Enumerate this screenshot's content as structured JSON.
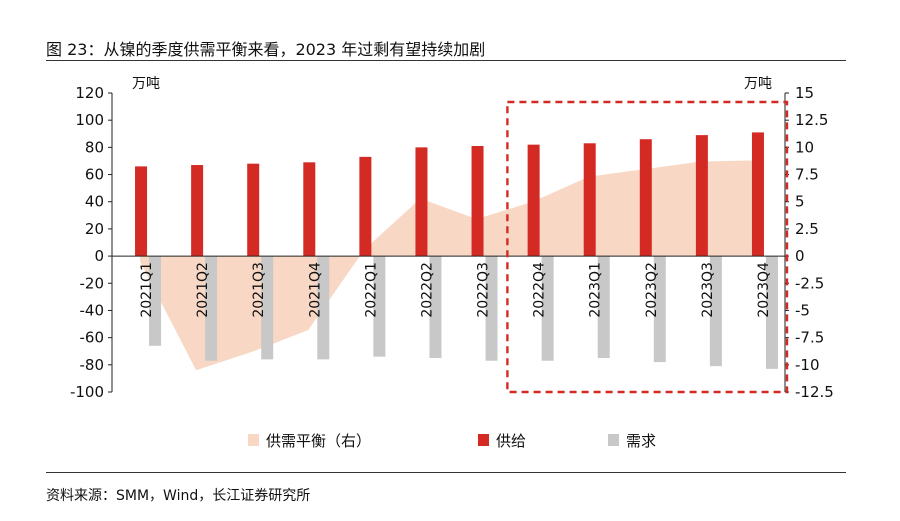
{
  "title": "图 23：从镍的季度供需平衡来看，2023 年过剩有望持续加剧",
  "source": "资料来源：SMM，Wind，长江证券研究所",
  "chart_data": {
    "type": "bar",
    "left_unit": "万吨",
    "right_unit": "万吨",
    "categories": [
      "2021Q1",
      "2021Q2",
      "2021Q3",
      "2021Q4",
      "2022Q1",
      "2022Q2",
      "2022Q3",
      "2022Q4",
      "2023Q1",
      "2023Q2",
      "2023Q3",
      "2023Q4"
    ],
    "ylim_left": [
      -100,
      120
    ],
    "yticks_left": [
      120,
      100,
      80,
      60,
      40,
      20,
      0,
      -20,
      -40,
      -60,
      -80,
      -100
    ],
    "ylim_right": [
      -12.5,
      15
    ],
    "yticks_right": [
      "15",
      "12.5",
      "10",
      "7.5",
      "5",
      "2.5",
      "0",
      "-2.5",
      "-5",
      "-7.5",
      "-10",
      "-12.5"
    ],
    "series": [
      {
        "name": "供需平衡（右）",
        "type": "area",
        "axis": "right",
        "color": "#f8d8c4",
        "values": [
          -0.5,
          -10.5,
          -8.8,
          -6.8,
          0.6,
          5.3,
          3.4,
          5.0,
          7.3,
          8.0,
          8.7,
          8.8
        ]
      },
      {
        "name": "供给",
        "type": "bar",
        "axis": "left",
        "color": "#d42a24",
        "values": [
          66,
          67,
          68,
          69,
          73,
          80,
          81,
          82,
          83,
          86,
          89,
          91
        ]
      },
      {
        "name": "需求",
        "type": "bar",
        "axis": "left",
        "color": "#c8c8c8",
        "values": [
          -66,
          -77,
          -76,
          -76,
          -74,
          -75,
          -77,
          -77,
          -75,
          -78,
          -81,
          -83
        ]
      }
    ],
    "highlight_range": [
      "2022Q4",
      "2023Q4"
    ],
    "highlight_color": "#d42a24",
    "legend_position": "bottom",
    "grid": false
  }
}
